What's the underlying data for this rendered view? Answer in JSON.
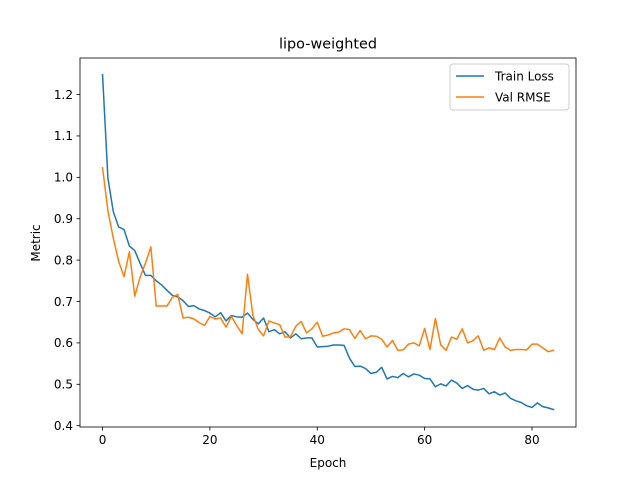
{
  "chart_data": {
    "type": "line",
    "title": "lipo-weighted",
    "xlabel": "Epoch",
    "ylabel": "Metric",
    "xlim": [
      -4.2,
      88.2
    ],
    "ylim": [
      0.3968,
      1.2883
    ],
    "xticks": [
      0,
      20,
      40,
      60,
      80
    ],
    "yticks": [
      0.4,
      0.5,
      0.6,
      0.7,
      0.8,
      0.9,
      1.0,
      1.1,
      1.2
    ],
    "ytick_labels": [
      "0.4",
      "0.5",
      "0.6",
      "0.7",
      "0.8",
      "0.9",
      "1.0",
      "1.1",
      "1.2"
    ],
    "grid": false,
    "legend_position": "top-right",
    "series": [
      {
        "name": "Train Loss",
        "color": "#1f77b4",
        "values": [
          1.248,
          0.998,
          0.917,
          0.88,
          0.874,
          0.834,
          0.823,
          0.792,
          0.763,
          0.763,
          0.75,
          0.74,
          0.727,
          0.715,
          0.711,
          0.702,
          0.688,
          0.69,
          0.682,
          0.678,
          0.672,
          0.663,
          0.673,
          0.653,
          0.666,
          0.663,
          0.662,
          0.672,
          0.657,
          0.646,
          0.66,
          0.627,
          0.632,
          0.622,
          0.627,
          0.612,
          0.622,
          0.61,
          0.612,
          0.612,
          0.59,
          0.591,
          0.592,
          0.595,
          0.595,
          0.594,
          0.563,
          0.543,
          0.544,
          0.538,
          0.526,
          0.529,
          0.541,
          0.513,
          0.519,
          0.516,
          0.526,
          0.518,
          0.525,
          0.522,
          0.514,
          0.513,
          0.494,
          0.501,
          0.496,
          0.51,
          0.503,
          0.49,
          0.497,
          0.488,
          0.486,
          0.49,
          0.477,
          0.482,
          0.474,
          0.479,
          0.466,
          0.46,
          0.456,
          0.448,
          0.444,
          0.455,
          0.446,
          0.443,
          0.439
        ]
      },
      {
        "name": "Val RMSE",
        "color": "#ff7f0e",
        "values": [
          1.023,
          0.919,
          0.853,
          0.797,
          0.76,
          0.82,
          0.713,
          0.759,
          0.793,
          0.832,
          0.689,
          0.689,
          0.689,
          0.71,
          0.717,
          0.66,
          0.662,
          0.658,
          0.649,
          0.642,
          0.664,
          0.658,
          0.66,
          0.638,
          0.664,
          0.642,
          0.622,
          0.766,
          0.667,
          0.633,
          0.617,
          0.653,
          0.648,
          0.644,
          0.614,
          0.615,
          0.64,
          0.652,
          0.624,
          0.634,
          0.65,
          0.616,
          0.619,
          0.624,
          0.626,
          0.634,
          0.632,
          0.611,
          0.63,
          0.61,
          0.617,
          0.616,
          0.609,
          0.59,
          0.606,
          0.582,
          0.583,
          0.597,
          0.6,
          0.593,
          0.635,
          0.584,
          0.659,
          0.595,
          0.582,
          0.614,
          0.609,
          0.634,
          0.6,
          0.605,
          0.617,
          0.582,
          0.588,
          0.584,
          0.612,
          0.59,
          0.582,
          0.584,
          0.584,
          0.583,
          0.597,
          0.597,
          0.588,
          0.579,
          0.582
        ]
      }
    ]
  }
}
